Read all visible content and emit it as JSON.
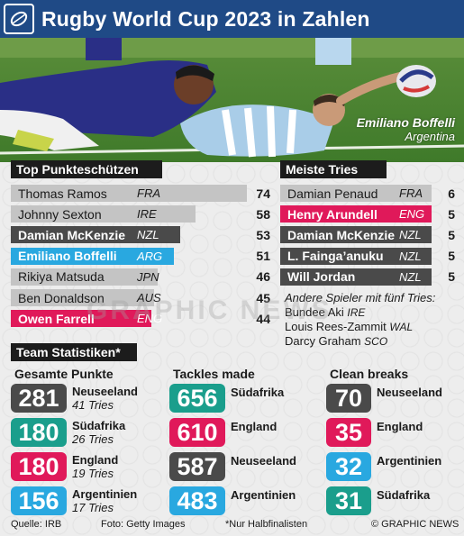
{
  "header": {
    "title": "Rugby World Cup 2023 in Zahlen"
  },
  "photo": {
    "caption_name": "Emiliano Boffelli",
    "caption_country": "Argentina"
  },
  "top_scorers": {
    "title": "Top Punkteschützen",
    "rows": [
      {
        "name": "Thomas Ramos",
        "country": "FRA",
        "value": "74",
        "fill": 1.0,
        "color": "#c4c4c4",
        "highlight": false
      },
      {
        "name": "Johnny Sexton",
        "country": "IRE",
        "value": "58",
        "fill": 0.784,
        "color": "#c4c4c4",
        "highlight": false
      },
      {
        "name": "Damian McKenzie",
        "country": "NZL",
        "value": "53",
        "fill": 0.716,
        "color": "#4a4a4a",
        "highlight": true
      },
      {
        "name": "Emiliano Boffelli",
        "country": "ARG",
        "value": "51",
        "fill": 0.689,
        "color": "#29a8e0",
        "highlight": true
      },
      {
        "name": "Rikiya Matsuda",
        "country": "JPN",
        "value": "46",
        "fill": 0.622,
        "color": "#c4c4c4",
        "highlight": false
      },
      {
        "name": "Ben Donaldson",
        "country": "AUS",
        "value": "45",
        "fill": 0.608,
        "color": "#c4c4c4",
        "highlight": false
      },
      {
        "name": "Owen Farrell",
        "country": "ENG",
        "value": "44",
        "fill": 0.595,
        "color": "#e0195a",
        "highlight": true
      }
    ]
  },
  "most_tries": {
    "title": "Meiste Tries",
    "rows": [
      {
        "name": "Damian Penaud",
        "country": "FRA",
        "value": "6",
        "color": "#c4c4c4",
        "highlight": false
      },
      {
        "name": "Henry Arundell",
        "country": "ENG",
        "value": "5",
        "color": "#e0195a",
        "highlight": true
      },
      {
        "name": "Damian McKenzie",
        "country": "NZL",
        "value": "5",
        "color": "#4a4a4a",
        "highlight": true
      },
      {
        "name": "L. Fainga’anuku",
        "country": "NZL",
        "value": "5",
        "color": "#4a4a4a",
        "highlight": true
      },
      {
        "name": "Will Jordan",
        "country": "NZL",
        "value": "5",
        "color": "#4a4a4a",
        "highlight": true
      }
    ],
    "others_label": "Andere Spieler mit fünf Tries:",
    "others": [
      {
        "name": "Bundee Aki",
        "country": "IRE"
      },
      {
        "name": "Louis Rees-Zammit",
        "country": "WAL"
      },
      {
        "name": "Darcy Graham",
        "country": "SCO"
      }
    ]
  },
  "team_stats": {
    "title": "Team Statistiken*",
    "points": {
      "title": "Gesamte Punkte",
      "items": [
        {
          "value": "281",
          "team": "Neuseeland",
          "sub": "41 Tries",
          "color": "#4a4a4a"
        },
        {
          "value": "180",
          "team": "Südafrika",
          "sub": "26 Tries",
          "color": "#1a9e8c"
        },
        {
          "value": "180",
          "team": "England",
          "sub": "19 Tries",
          "color": "#e0195a"
        },
        {
          "value": "156",
          "team": "Argentinien",
          "sub": "17 Tries",
          "color": "#29a8e0"
        }
      ]
    },
    "tackles": {
      "title": "Tackles made",
      "items": [
        {
          "value": "656",
          "team": "Südafrika",
          "color": "#1a9e8c"
        },
        {
          "value": "610",
          "team": "England",
          "color": "#e0195a"
        },
        {
          "value": "587",
          "team": "Neuseeland",
          "color": "#4a4a4a"
        },
        {
          "value": "483",
          "team": "Argentinien",
          "color": "#29a8e0"
        }
      ]
    },
    "breaks": {
      "title": "Clean breaks",
      "items": [
        {
          "value": "70",
          "team": "Neuseeland",
          "color": "#4a4a4a"
        },
        {
          "value": "35",
          "team": "England",
          "color": "#e0195a"
        },
        {
          "value": "32",
          "team": "Argentinien",
          "color": "#29a8e0"
        },
        {
          "value": "31",
          "team": "Südafrika",
          "color": "#1a9e8c"
        }
      ]
    }
  },
  "footer": {
    "source": "Quelle: IRB",
    "photo": "Foto: Getty Images",
    "note": "*Nur Halbfinalisten",
    "credit": "© GRAPHIC NEWS"
  },
  "watermark": "GRAPHIC NEWS"
}
